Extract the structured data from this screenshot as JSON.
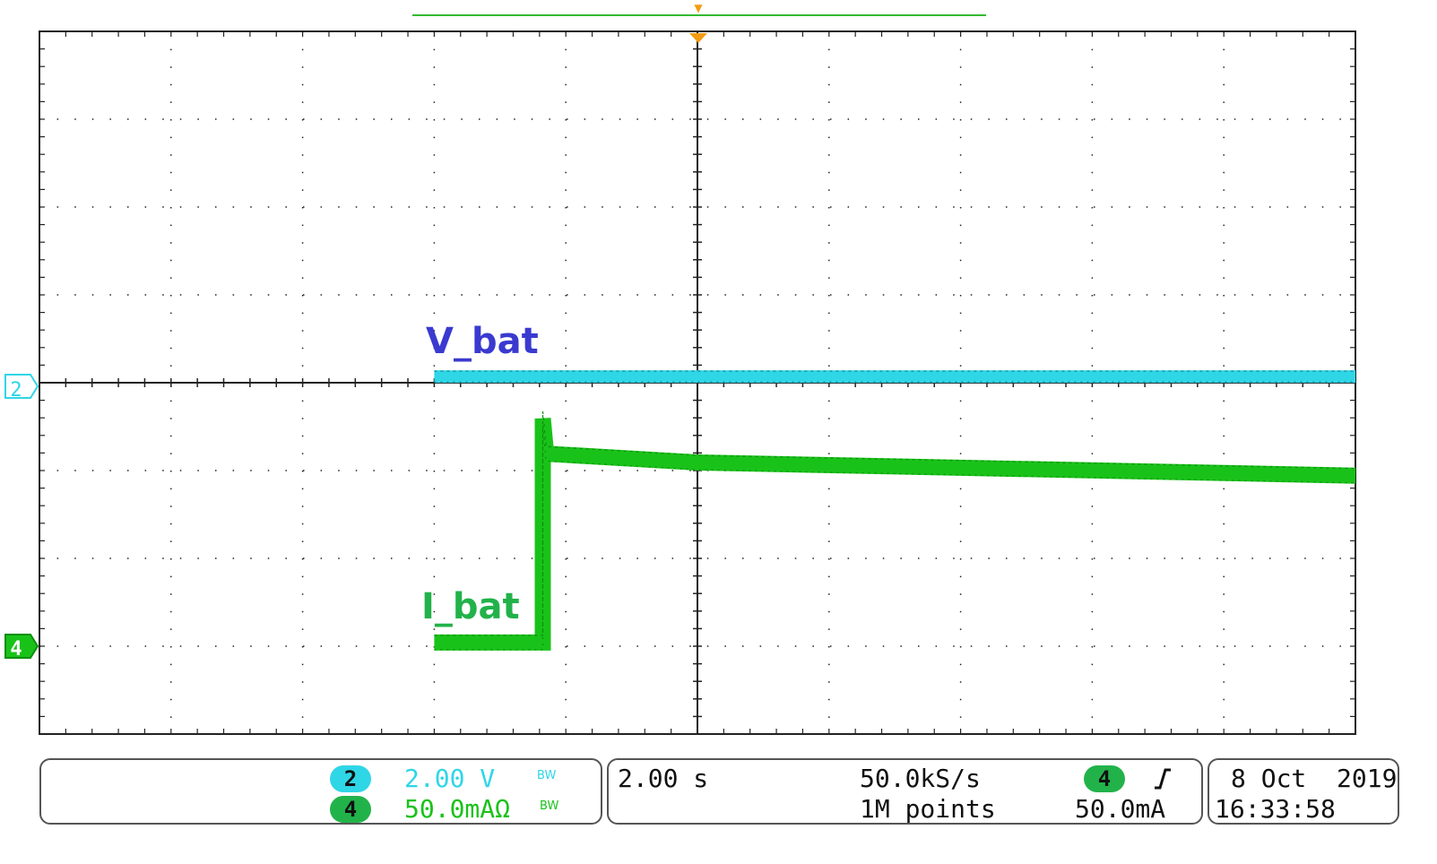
{
  "chart_data": {
    "type": "line",
    "grid": true,
    "divisions": {
      "x": 10,
      "y": 8
    },
    "x_units": "s",
    "y_units_note": "divisions relative to each channel's ground marker",
    "trigger_time": 0,
    "xlim": [
      -10,
      10
    ],
    "series": [
      {
        "name": "V_bat",
        "channel": "2",
        "color": "#2fd6e6",
        "label_color": "#3a3ad0",
        "scale_per_div": "2.00 V",
        "points": [
          [
            -4.0,
            0.05
          ],
          [
            10.0,
            0.05
          ]
        ]
      },
      {
        "name": "I_bat",
        "channel": "4",
        "color": "#19c219",
        "label_color": "#22b24a",
        "scale_per_div": "50.0mA",
        "points": [
          [
            -4.0,
            -0.05
          ],
          [
            -2.35,
            -0.05
          ],
          [
            -2.35,
            2.5
          ],
          [
            -2.3,
            2.1
          ],
          [
            0.0,
            2.0
          ],
          [
            10.0,
            1.85
          ]
        ]
      }
    ]
  },
  "header": {
    "trigger_marker": "▼"
  },
  "markers": {
    "ch2": "2",
    "ch4": "4"
  },
  "status": {
    "ch2_badge": "2",
    "ch2_scale": "2.00 V",
    "ch2_bw": "BW",
    "ch4_badge": "4",
    "ch4_scale": "50.0mAΩ",
    "ch4_bw": "BW",
    "timebase": "2.00 s",
    "sample_rate": "50.0kS/s",
    "record_length": "1M points",
    "trigger_source": "4",
    "trigger_slope_icon": "rising-edge",
    "trigger_level": "50.0mA",
    "date": "8 Oct  2019",
    "time": "16:33:58"
  },
  "colors": {
    "ch2": "#2fd6e6",
    "ch4": "#19c219",
    "ch2_badge": "#2fd6e6",
    "ch4_badge": "#22b24a",
    "trigger": "#f39c12",
    "grid": "#222222",
    "record_bar": "#33bb33"
  }
}
